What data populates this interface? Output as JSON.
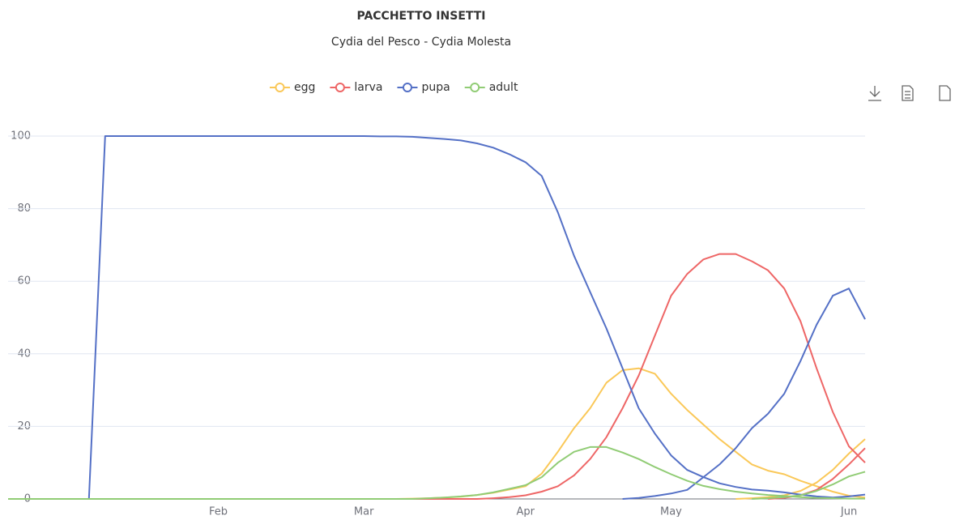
{
  "chart_data": {
    "type": "line",
    "title": "PACCHETTO INSETTI",
    "subtitle": "Cydia del Pesco - Cydia Molesta",
    "categories": [
      null,
      null,
      null,
      null,
      null,
      null,
      null,
      null,
      null,
      null,
      null,
      null,
      null,
      "Feb",
      null,
      null,
      null,
      null,
      null,
      null,
      null,
      null,
      "Mar",
      null,
      null,
      null,
      null,
      null,
      null,
      null,
      null,
      null,
      "Apr",
      null,
      null,
      null,
      null,
      null,
      null,
      null,
      null,
      "May",
      null,
      null,
      null,
      null,
      null,
      null,
      null,
      null,
      null,
      null,
      "Jun",
      null
    ],
    "ylim": [
      0,
      100
    ],
    "yticks": [
      0,
      20,
      40,
      60,
      80,
      100
    ],
    "grid": true,
    "series": [
      {
        "name": "egg",
        "color": "#fac858",
        "values": [
          0,
          0,
          0,
          0,
          0,
          0,
          0,
          0,
          0,
          0,
          0,
          0,
          0,
          0,
          0,
          0,
          0,
          0,
          0,
          0,
          0,
          0,
          0,
          0,
          0,
          0.1,
          0.2,
          0.4,
          0.6,
          1.1,
          1.7,
          2.6,
          3.5,
          7,
          13,
          19.5,
          25,
          32,
          35.5,
          36,
          34.5,
          29,
          24.5,
          20.5,
          16.5,
          13,
          9.5,
          7.8,
          6.8,
          5,
          3.5,
          2,
          0.9,
          0.4
        ]
      },
      {
        "name": "egg",
        "color": "#fac858",
        "values": [
          null,
          null,
          null,
          null,
          null,
          null,
          null,
          null,
          null,
          null,
          null,
          null,
          null,
          null,
          null,
          null,
          null,
          null,
          null,
          null,
          null,
          null,
          null,
          null,
          null,
          null,
          null,
          null,
          null,
          null,
          null,
          null,
          null,
          null,
          null,
          null,
          null,
          null,
          null,
          null,
          null,
          null,
          null,
          null,
          null,
          0,
          0.2,
          0.5,
          1,
          2.2,
          4.5,
          8,
          12.5,
          16.5
        ]
      },
      {
        "name": "larva",
        "color": "#ee6666",
        "values": [
          0,
          0,
          0,
          0,
          0,
          0,
          0,
          0,
          0,
          0,
          0,
          0,
          0,
          0,
          0,
          0,
          0,
          0,
          0,
          0,
          0,
          0,
          0,
          0,
          0,
          0,
          0,
          0,
          0,
          0,
          0.2,
          0.5,
          1,
          2,
          3.5,
          6.5,
          11,
          17,
          25,
          34,
          45,
          56,
          62,
          66,
          67.5,
          67.5,
          65.5,
          63,
          58,
          49,
          36,
          24,
          14.5,
          10
        ]
      },
      {
        "name": "larva",
        "color": "#ee6666",
        "values": [
          null,
          null,
          null,
          null,
          null,
          null,
          null,
          null,
          null,
          null,
          null,
          null,
          null,
          null,
          null,
          null,
          null,
          null,
          null,
          null,
          null,
          null,
          null,
          null,
          null,
          null,
          null,
          null,
          null,
          null,
          null,
          null,
          null,
          null,
          null,
          null,
          null,
          null,
          null,
          null,
          null,
          null,
          null,
          null,
          null,
          null,
          null,
          0,
          0.3,
          1,
          2.5,
          5.5,
          9.5,
          14
        ]
      },
      {
        "name": "pupa",
        "color": "#5470c6",
        "values": [
          0,
          0,
          0,
          0,
          0,
          0,
          100,
          100,
          100,
          100,
          100,
          100,
          100,
          100,
          100,
          100,
          100,
          100,
          100,
          100,
          100,
          100,
          100,
          99.9,
          99.9,
          99.8,
          99.5,
          99.2,
          98.8,
          98,
          96.8,
          95,
          92.8,
          89,
          79,
          67,
          57,
          47,
          36,
          25,
          18,
          12,
          8,
          6,
          4.3,
          3.3,
          2.6,
          2.3,
          1.8,
          1.2,
          0.7,
          0.4,
          0.7,
          1.2
        ]
      },
      {
        "name": "pupa",
        "color": "#5470c6",
        "values": [
          null,
          null,
          null,
          null,
          null,
          null,
          null,
          null,
          null,
          null,
          null,
          null,
          null,
          null,
          null,
          null,
          null,
          null,
          null,
          null,
          null,
          null,
          null,
          null,
          null,
          null,
          null,
          null,
          null,
          null,
          null,
          null,
          null,
          null,
          null,
          null,
          null,
          null,
          0,
          0.3,
          0.8,
          1.5,
          2.5,
          6,
          9.5,
          14,
          19.5,
          23.5,
          29,
          38,
          48,
          56,
          58,
          49.5
        ]
      },
      {
        "name": "adult",
        "color": "#91cc75",
        "values": [
          0,
          0,
          0,
          0,
          0,
          0,
          0,
          0,
          0,
          0,
          0,
          0,
          0,
          0,
          0,
          0,
          0,
          0,
          0,
          0,
          0,
          0,
          0,
          0,
          0,
          0,
          0.2,
          0.4,
          0.7,
          1.1,
          1.8,
          2.8,
          3.8,
          6,
          10,
          13,
          14.3,
          14.3,
          12.8,
          11,
          8.8,
          6.8,
          5,
          3.6,
          2.7,
          2,
          1.5,
          1.1,
          0.8,
          0.5,
          0.3,
          0.2,
          0.1,
          0.1
        ]
      },
      {
        "name": "adult",
        "color": "#91cc75",
        "values": [
          null,
          null,
          null,
          null,
          null,
          null,
          null,
          null,
          null,
          null,
          null,
          null,
          null,
          null,
          null,
          null,
          null,
          null,
          null,
          null,
          null,
          null,
          null,
          null,
          null,
          null,
          null,
          null,
          null,
          null,
          null,
          null,
          null,
          null,
          null,
          null,
          null,
          null,
          null,
          null,
          null,
          null,
          null,
          null,
          null,
          null,
          0,
          0.2,
          0.5,
          1,
          2.2,
          4,
          6.2,
          7.5
        ]
      }
    ]
  }
}
